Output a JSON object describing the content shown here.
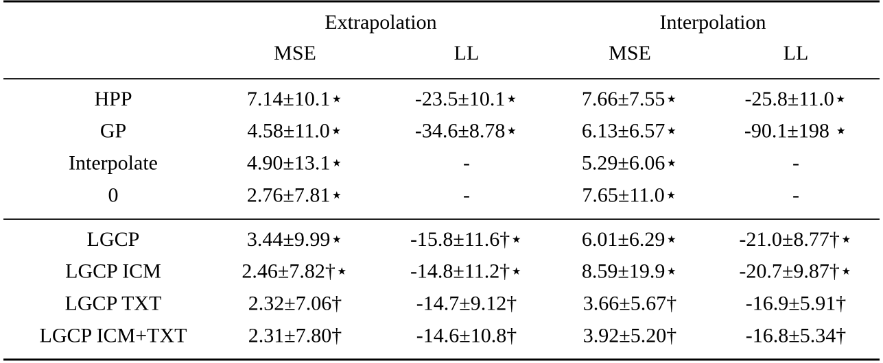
{
  "table": {
    "groups": [
      "Extrapolation",
      "Interpolation"
    ],
    "columns": [
      "MSE",
      "LL",
      "MSE",
      "LL"
    ],
    "sections": [
      [
        {
          "label": "HPP",
          "cells": [
            "7.14±10.1⋆",
            "-23.5±10.1⋆",
            "7.66±7.55⋆",
            "-25.8±11.0⋆"
          ]
        },
        {
          "label": "GP",
          "cells": [
            "4.58±11.0⋆",
            "-34.6±8.78⋆",
            "6.13±6.57⋆",
            "-90.1±198 ⋆"
          ]
        },
        {
          "label": "Interpolate",
          "cells": [
            "4.90±13.1⋆",
            "-",
            "5.29±6.06⋆",
            "-"
          ]
        },
        {
          "label": "0",
          "cells": [
            "2.76±7.81⋆",
            "-",
            "7.65±11.0⋆",
            "-"
          ]
        }
      ],
      [
        {
          "label": "LGCP",
          "cells": [
            "3.44±9.99⋆",
            "-15.8±11.6†⋆",
            "6.01±6.29⋆",
            "-21.0±8.77†⋆"
          ]
        },
        {
          "label": "LGCP ICM",
          "cells": [
            "2.46±7.82†⋆",
            "-14.8±11.2†⋆",
            "8.59±19.9⋆",
            "-20.7±9.87†⋆"
          ]
        },
        {
          "label": "LGCP TXT",
          "cells": [
            "2.32±7.06†",
            "-14.7±9.12†",
            "3.66±5.67†",
            "-16.9±5.91†"
          ]
        },
        {
          "label": "LGCP ICM+TXT",
          "cells": [
            "2.31±7.80†",
            "-14.6±10.8†",
            "3.92±5.20†",
            "-16.8±5.34†"
          ]
        }
      ]
    ]
  }
}
